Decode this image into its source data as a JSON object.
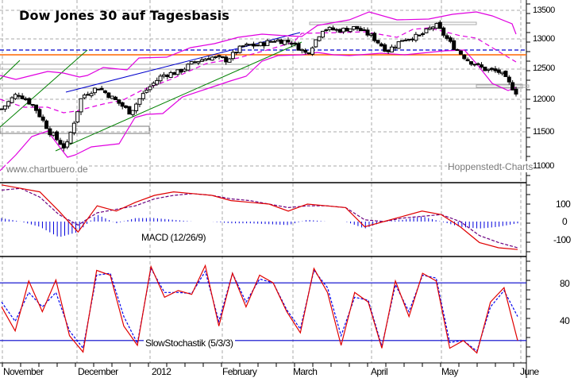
{
  "title": "Dow Jones 30 auf Tagesbasis",
  "watermarks": {
    "left": "www.chartbuero.de",
    "right": "Hoppenstedt-Charts"
  },
  "indicators": {
    "macd_label": "MACD (12/26/9)",
    "stoch_label": "SlowStochastik (5/3/3)"
  },
  "colors": {
    "candle": "#000000",
    "bollinger": "#e000e0",
    "trend_blue": "#0000cc",
    "trend_green": "#008000",
    "support_orange": "#ff6600",
    "resistance_dashed_blue": "#0000cc",
    "macd_line": "#e00000",
    "macd_signal": "#6a0080",
    "macd_histogram": "#0000dd",
    "stoch_k": "#e00000",
    "stoch_d": "#0000ee",
    "stoch_bands": "#0000cc",
    "grid": "#aaaaaa"
  },
  "axes": {
    "price_ticks": [
      "13500",
      "13000",
      "12500",
      "12000",
      "11500",
      "11000"
    ],
    "macd_ticks": [
      "100",
      "0",
      "-100"
    ],
    "stoch_ticks": [
      "80",
      "40"
    ],
    "x_months": [
      "November",
      "December",
      "2012",
      "February",
      "March",
      "April",
      "May",
      "June"
    ]
  },
  "chart_data": [
    {
      "type": "candlestick",
      "title": "Dow Jones 30 auf Tagesbasis",
      "xlabel": "",
      "ylabel": "",
      "ylim": [
        10800,
        13700
      ],
      "y_ticks": [
        11000,
        11500,
        12000,
        12500,
        13000,
        13500
      ],
      "x_ticks": [
        "November",
        "December",
        "2012",
        "February",
        "March",
        "April",
        "May",
        "June"
      ],
      "grid": true,
      "overlays": [
        "Bollinger Bands (upper, middle dashed, lower)",
        "blue uptrend channel line",
        "green uptrend support line",
        "horizontal resistance ~12810 (blue dashed)",
        "horizontal support ~12720 (orange)",
        "grey horizontal zones ~12400, ~12200, ~11550, ~13270"
      ],
      "approx_close_series": {
        "x": [
          "Nov-01",
          "Nov-08",
          "Nov-15",
          "Nov-22",
          "Nov-25",
          "Dec-01",
          "Dec-08",
          "Dec-15",
          "Dec-19",
          "Dec-23",
          "Jan-03",
          "Jan-10",
          "Jan-17",
          "Jan-24",
          "Jan-31",
          "Feb-07",
          "Feb-14",
          "Feb-21",
          "Feb-28",
          "Mar-06",
          "Mar-13",
          "Mar-20",
          "Mar-27",
          "Apr-03",
          "Apr-10",
          "Apr-17",
          "Apr-24",
          "May-01",
          "May-08",
          "May-15",
          "May-22",
          "May-29",
          "Jun-01"
        ],
        "values": [
          11850,
          12100,
          11900,
          11500,
          11250,
          12050,
          12200,
          12000,
          11800,
          12150,
          12400,
          12450,
          12620,
          12700,
          12650,
          12880,
          12900,
          12980,
          12950,
          12750,
          13180,
          13150,
          13200,
          13050,
          12800,
          13000,
          13050,
          13250,
          12900,
          12650,
          12500,
          12450,
          12120
        ]
      }
    },
    {
      "type": "line",
      "title": "MACD (12/26/9)",
      "ylim": [
        -180,
        230
      ],
      "y_ticks": [
        100,
        0,
        -100
      ],
      "series": [
        {
          "name": "MACD",
          "values": [
            210,
            190,
            170,
            60,
            -60,
            90,
            60,
            110,
            150,
            170,
            160,
            150,
            120,
            110,
            100,
            60,
            100,
            90,
            80,
            -30,
            0,
            30,
            60,
            40,
            -30,
            -120,
            -150,
            -160
          ]
        },
        {
          "name": "Signal",
          "values": [
            180,
            190,
            140,
            40,
            -20,
            50,
            70,
            90,
            130,
            150,
            160,
            150,
            130,
            120,
            100,
            80,
            90,
            90,
            80,
            10,
            0,
            20,
            30,
            40,
            0,
            -80,
            -120,
            -150
          ]
        },
        {
          "name": "Histogram",
          "values": [
            20,
            0,
            -30,
            -90,
            -60,
            40,
            -10,
            20,
            20,
            10,
            0,
            0,
            -10,
            -10,
            -15,
            -20,
            10,
            0,
            0,
            -40,
            0,
            10,
            30,
            0,
            -30,
            -40,
            -30,
            -10
          ]
        }
      ]
    },
    {
      "type": "line",
      "title": "SlowStochastik (5/3/3)",
      "ylim": [
        0,
        104
      ],
      "y_ticks": [
        80,
        40
      ],
      "bands": [
        80,
        20
      ],
      "series": [
        {
          "name": "%K",
          "values": [
            55,
            30,
            82,
            50,
            83,
            25,
            8,
            93,
            88,
            35,
            15,
            97,
            65,
            72,
            68,
            98,
            35,
            90,
            55,
            88,
            80,
            50,
            28,
            95,
            70,
            15,
            70,
            60,
            12,
            82,
            45,
            90,
            82,
            12,
            20,
            7,
            60,
            75,
            20
          ]
        },
        {
          "name": "%D",
          "values": [
            60,
            40,
            70,
            55,
            70,
            30,
            12,
            88,
            90,
            45,
            17,
            95,
            70,
            70,
            69,
            92,
            40,
            90,
            60,
            84,
            80,
            52,
            32,
            93,
            75,
            25,
            65,
            62,
            14,
            78,
            50,
            88,
            85,
            18,
            20,
            9,
            55,
            72,
            45
          ]
        }
      ]
    }
  ]
}
